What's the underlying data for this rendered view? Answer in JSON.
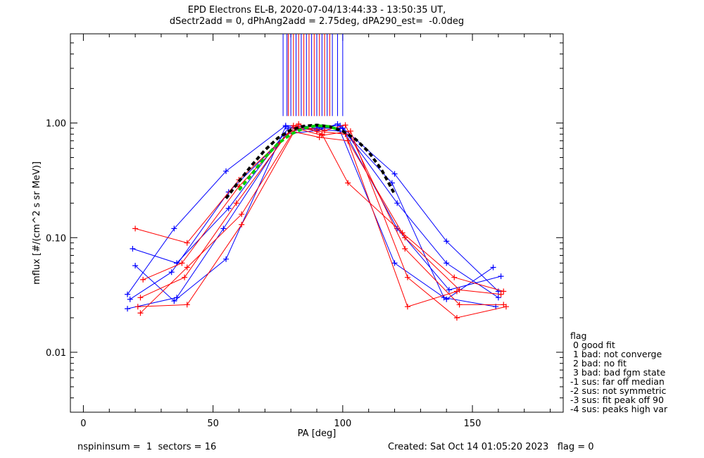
{
  "title_line1": "EPD Electrons EL-B, 2020-07-04/13:44:33 - 13:50:35 UT,",
  "title_line2": "dSectr2add = 0, dPhAng2add = 2.75deg, dPA290_est=  -0.0deg",
  "footer": {
    "left": "nspininsum =  1  sectors = 16",
    "right": "Created: Sat Oct 14 01:05:20 2023   flag = 0"
  },
  "legend": {
    "title": "flag",
    "items": [
      " 0 good fit",
      " 1 bad: not converge",
      " 2 bad: no fit",
      " 3 bad: bad fgm state",
      "-1 sus: far off median",
      "-2 sus: not symmetric",
      "-3 sus: fit peak off 90",
      "-4 sus: peaks high var"
    ]
  },
  "colors": {
    "series_a": "#0000ff",
    "series_b": "#ff0000",
    "fit": "#000000",
    "median": "#00cc00",
    "axes": "#000000"
  },
  "chart_data": {
    "type": "line",
    "xlabel": "PA [deg]",
    "ylabel": "mflux [#/(cm^2 s sr MeV)]",
    "xlim": [
      -5,
      185
    ],
    "ylim": [
      0.003,
      6.0
    ],
    "yscale": "log",
    "x_ticks": [
      0,
      50,
      100,
      150
    ],
    "x_tick_labels": [
      "0",
      "50",
      "100",
      "150"
    ],
    "y_ticks": [
      0.01,
      0.1,
      1.0
    ],
    "y_tick_labels": [
      "0.01",
      "0.10",
      "1.00"
    ],
    "series": [
      {
        "color": "blue",
        "x": [
          17,
          35,
          55,
          78,
          90,
          99,
          120,
          140,
          160
        ],
        "y": [
          0.032,
          0.12,
          0.38,
          0.95,
          0.93,
          0.95,
          0.36,
          0.093,
          0.034
        ]
      },
      {
        "color": "blue",
        "x": [
          19,
          36,
          56,
          79,
          91,
          100,
          121,
          141,
          161
        ],
        "y": [
          0.08,
          0.06,
          0.18,
          0.9,
          0.9,
          0.9,
          0.12,
          0.035,
          0.046
        ]
      },
      {
        "color": "blue",
        "x": [
          20,
          35,
          55,
          78,
          90,
          99,
          120,
          140,
          158
        ],
        "y": [
          0.057,
          0.028,
          0.065,
          0.93,
          0.88,
          0.85,
          0.06,
          0.029,
          0.055
        ]
      },
      {
        "color": "blue",
        "x": [
          18,
          34,
          56,
          80,
          92,
          100,
          121,
          140,
          160
        ],
        "y": [
          0.029,
          0.05,
          0.25,
          0.85,
          0.92,
          0.9,
          0.2,
          0.06,
          0.03
        ]
      },
      {
        "color": "blue",
        "x": [
          17,
          36,
          54,
          78,
          90,
          98,
          119,
          139,
          159
        ],
        "y": [
          0.024,
          0.03,
          0.12,
          0.8,
          0.86,
          0.98,
          0.3,
          0.03,
          0.025
        ]
      },
      {
        "color": "red",
        "x": [
          20,
          40,
          60,
          83,
          92,
          102,
          123,
          143,
          162
        ],
        "y": [
          0.12,
          0.09,
          0.32,
          0.98,
          0.8,
          0.3,
          0.11,
          0.045,
          0.034
        ]
      },
      {
        "color": "red",
        "x": [
          22,
          39,
          59,
          81,
          93,
          101,
          124,
          145,
          162
        ],
        "y": [
          0.03,
          0.045,
          0.2,
          0.95,
          0.86,
          0.96,
          0.08,
          0.026,
          0.026
        ]
      },
      {
        "color": "red",
        "x": [
          21,
          40,
          61,
          82,
          92,
          103,
          125,
          144,
          163
        ],
        "y": [
          0.025,
          0.026,
          0.13,
          0.9,
          0.78,
          0.85,
          0.045,
          0.02,
          0.025
        ]
      },
      {
        "color": "red",
        "x": [
          23,
          38,
          60,
          80,
          91,
          102,
          124,
          145,
          161
        ],
        "y": [
          0.043,
          0.06,
          0.28,
          0.85,
          0.75,
          0.7,
          0.1,
          0.035,
          0.032
        ]
      },
      {
        "color": "red",
        "x": [
          22,
          40,
          61,
          82,
          90,
          101,
          125,
          144
        ],
        "y": [
          0.022,
          0.055,
          0.16,
          0.92,
          0.85,
          0.8,
          0.025,
          0.034
        ]
      }
    ],
    "fit_curve": {
      "color": "black",
      "x": [
        55,
        60,
        65,
        70,
        75,
        80,
        85,
        90,
        95,
        100,
        105,
        110,
        115,
        120
      ],
      "y": [
        0.22,
        0.31,
        0.43,
        0.58,
        0.74,
        0.87,
        0.94,
        0.96,
        0.93,
        0.85,
        0.72,
        0.56,
        0.39,
        0.24
      ]
    },
    "median_curve": {
      "color": "green",
      "x": [
        60,
        65,
        70,
        75,
        80,
        85,
        90,
        95,
        98
      ],
      "y": [
        0.26,
        0.36,
        0.5,
        0.66,
        0.8,
        0.9,
        0.95,
        0.93,
        0.88
      ]
    },
    "peak_markers": [
      {
        "color": "blue",
        "x": [
          77,
          78.5,
          80,
          82,
          84,
          86,
          88,
          90,
          92,
          94,
          96,
          98,
          100
        ]
      },
      {
        "color": "red",
        "x": [
          79,
          81,
          83,
          85,
          87,
          89,
          91,
          93,
          95
        ]
      }
    ]
  }
}
